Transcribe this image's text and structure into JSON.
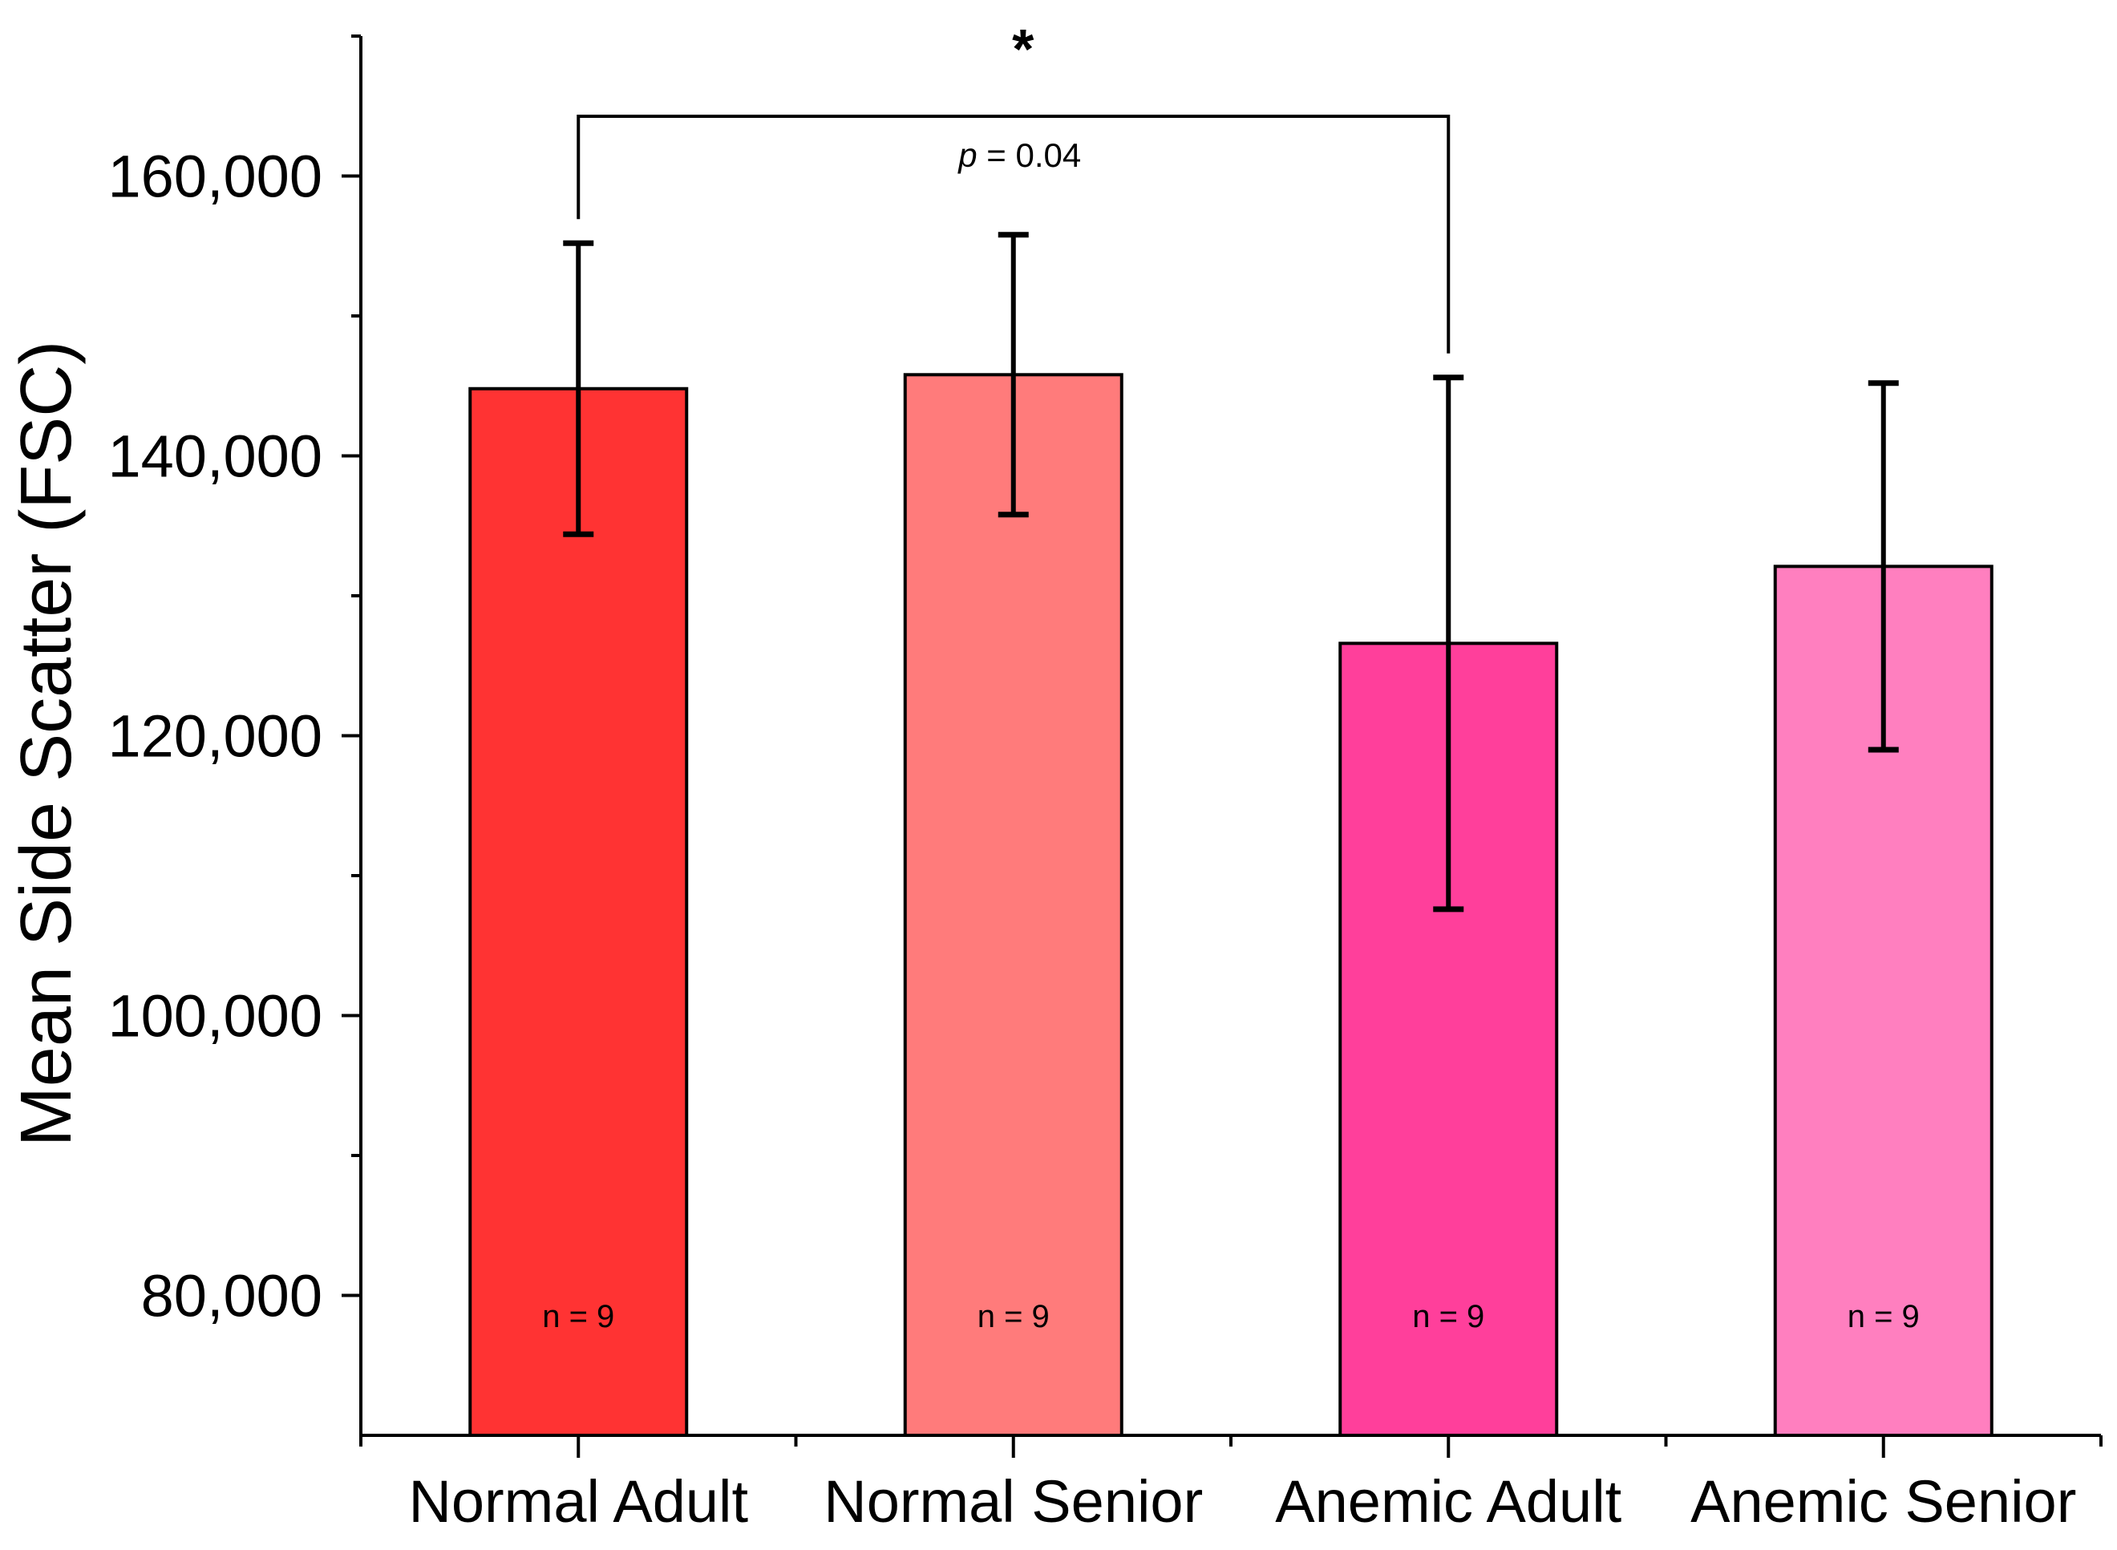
{
  "chart_data": {
    "type": "bar",
    "title": "",
    "xlabel": "",
    "ylabel": "Mean Side Scatter (FSC)",
    "ylim": [
      70000,
      170000
    ],
    "yticks": [
      80000,
      100000,
      120000,
      140000,
      160000
    ],
    "ytick_labels": [
      "80,000",
      "100,000",
      "120,000",
      "140,000",
      "160,000"
    ],
    "categories": [
      "Normal Adult",
      "Normal Senior",
      "Anemic Adult",
      "Anemic Senior"
    ],
    "values": [
      144800,
      145800,
      126600,
      132100
    ],
    "errors": [
      10400,
      10000,
      19000,
      13100
    ],
    "colors": [
      "#ff3333",
      "#ff7b7b",
      "#ff3f9b",
      "#ff7fbf"
    ],
    "sample_labels": [
      "n = 9",
      "n = 9",
      "n = 9",
      "n = 9"
    ],
    "significance": {
      "from_index": 0,
      "to_index": 2,
      "marker": "*",
      "p_symbol": "p",
      "p_text": " = 0.04"
    }
  }
}
